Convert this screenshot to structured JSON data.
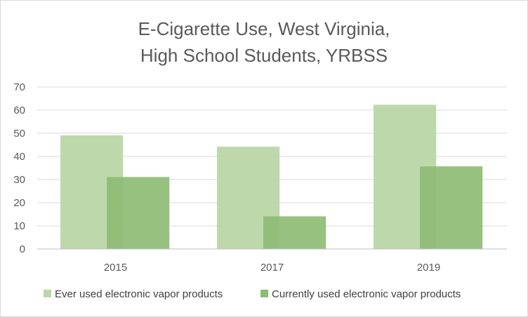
{
  "chart_data": {
    "type": "bar",
    "title_lines": [
      "E-Cigarette Use, West Virginia,",
      "High School Students, YRBSS"
    ],
    "categories": [
      "2015",
      "2017",
      "2019"
    ],
    "series": [
      {
        "name": "Ever used electronic vapor products",
        "values": [
          49.1,
          44.2,
          62.3
        ],
        "color": "#b9d7a8"
      },
      {
        "name": "Currently used electronic vapor products",
        "values": [
          31.1,
          14.1,
          35.7
        ],
        "color": "#8ebc74"
      }
    ],
    "ylim": [
      0,
      70
    ],
    "yticks": [
      0,
      10,
      20,
      30,
      40,
      50,
      60,
      70
    ],
    "grid": true,
    "legend_position": "bottom",
    "colors": {
      "grid": "#d9d9d9",
      "axis": "#bfbfbf",
      "text": "#595959"
    }
  }
}
